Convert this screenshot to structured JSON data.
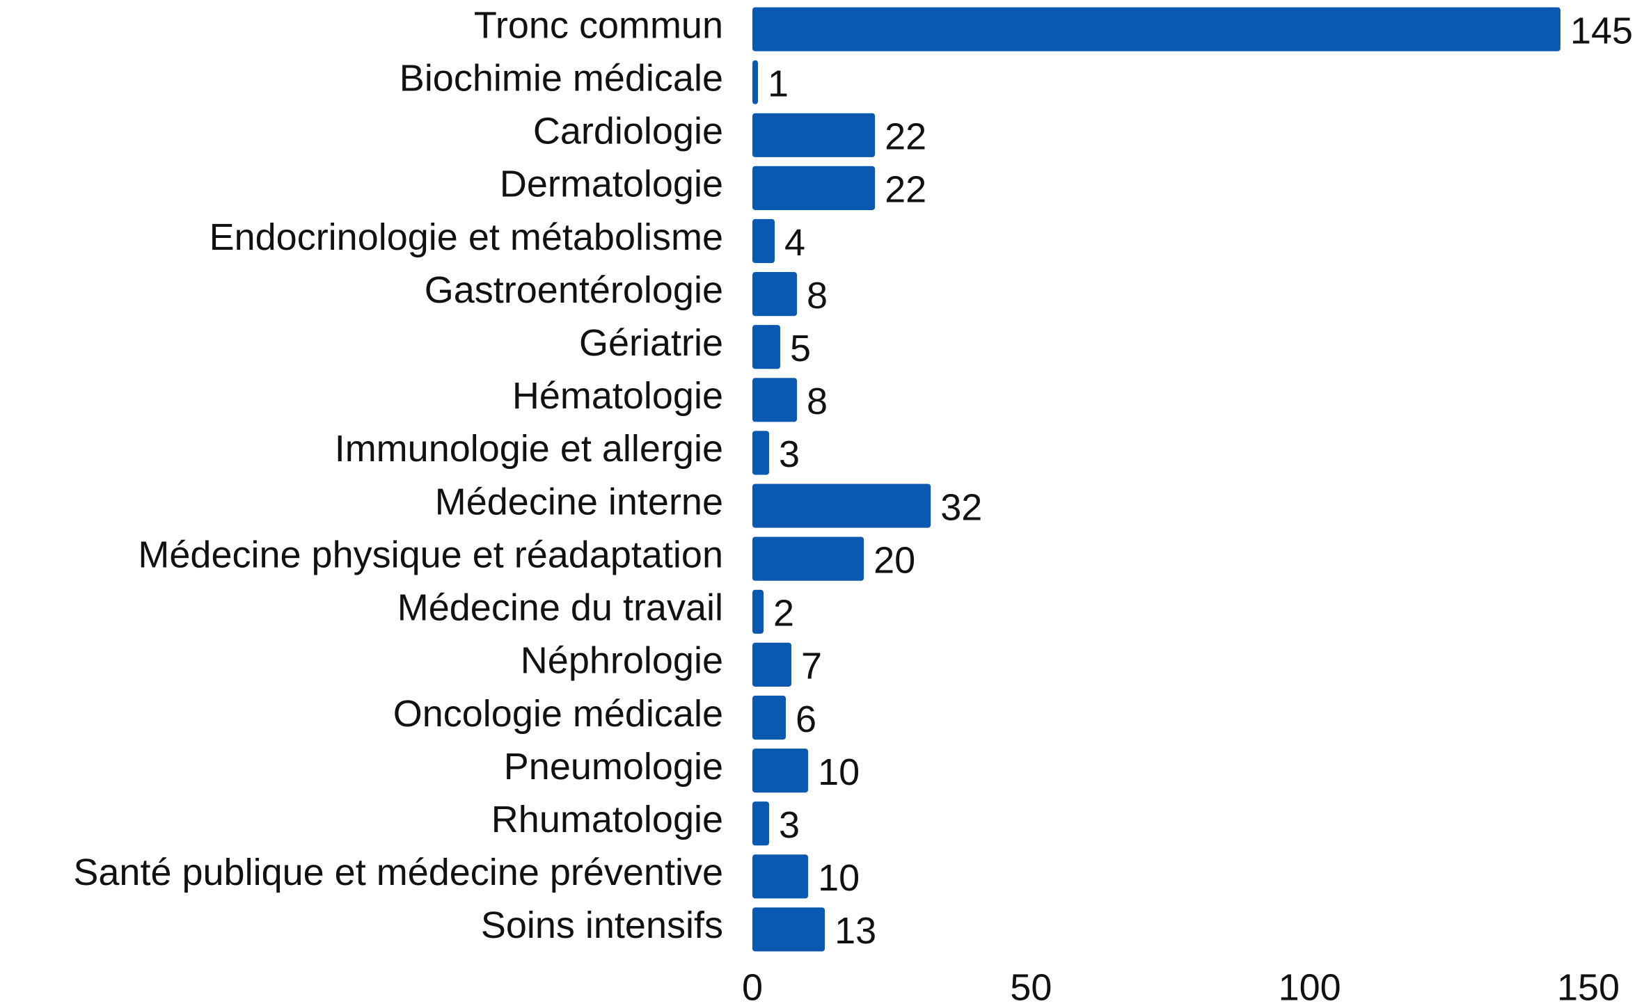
{
  "chart_data": {
    "type": "bar",
    "orientation": "horizontal",
    "categories": [
      "Tronc commun",
      "Biochimie médicale",
      "Cardiologie",
      "Dermatologie",
      "Endocrinologie et métabolisme",
      "Gastroentérologie",
      "Gériatrie",
      "Hématologie",
      "Immunologie et allergie",
      "Médecine interne",
      "Médecine physique et réadaptation",
      "Médecine du travail",
      "Néphrologie",
      "Oncologie médicale",
      "Pneumologie",
      "Rhumatologie",
      "Santé publique et médecine préventive",
      "Soins intensifs"
    ],
    "values": [
      145,
      1,
      22,
      22,
      4,
      8,
      5,
      8,
      3,
      32,
      20,
      2,
      7,
      6,
      10,
      3,
      10,
      13
    ],
    "color": "#0a58b0",
    "xlim": [
      0,
      150
    ],
    "xticks": [
      0,
      50,
      100,
      150
    ],
    "grid": false
  }
}
